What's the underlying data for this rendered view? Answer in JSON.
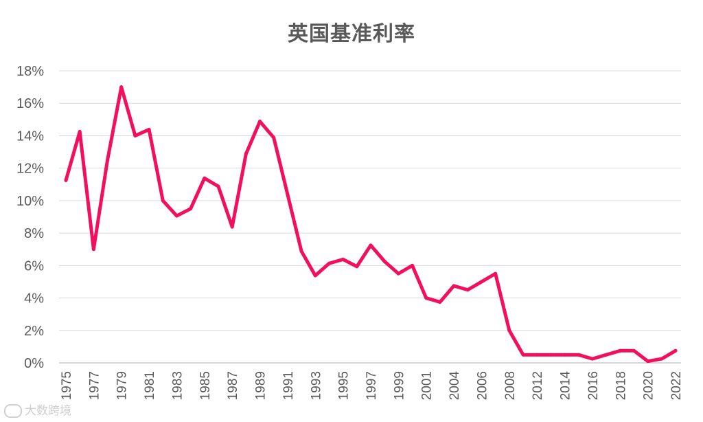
{
  "chart_data": {
    "type": "line",
    "title": "英国基准利率",
    "xlabel": "",
    "ylabel": "",
    "ylim": [
      0,
      18
    ],
    "yticks": [
      "0%",
      "2%",
      "4%",
      "6%",
      "8%",
      "10%",
      "12%",
      "14%",
      "16%",
      "18%"
    ],
    "grid": true,
    "legend": "none",
    "categories": [
      "1975",
      "1976",
      "1977",
      "1978",
      "1979",
      "1980",
      "1981",
      "1982",
      "1983",
      "1984",
      "1985",
      "1986",
      "1987",
      "1988",
      "1989",
      "1990",
      "1991",
      "1992",
      "1993",
      "1994",
      "1995",
      "1996",
      "1997",
      "1998",
      "1999",
      "2000",
      "2001",
      "2002",
      "2004",
      "2005",
      "2006",
      "2007",
      "2008",
      "2009",
      "2012",
      "2013",
      "2014",
      "2015",
      "2016",
      "2017",
      "2018",
      "2019",
      "2020",
      "2021",
      "2022"
    ],
    "xtick_labels": [
      "1975",
      "1977",
      "1979",
      "1981",
      "1983",
      "1985",
      "1987",
      "1989",
      "1991",
      "1993",
      "1995",
      "1997",
      "1999",
      "2001",
      "2004",
      "2006",
      "2008",
      "2012",
      "2014",
      "2016",
      "2018",
      "2020",
      "2022"
    ],
    "series": [
      {
        "values": [
          11.25,
          14.25,
          7.0,
          12.5,
          17.0,
          14.0,
          14.38,
          10.0,
          9.06,
          9.5,
          11.38,
          10.88,
          8.38,
          12.88,
          14.88,
          13.88,
          10.38,
          6.88,
          5.38,
          6.13,
          6.38,
          5.94,
          7.25,
          6.25,
          5.5,
          6.0,
          4.0,
          3.75,
          4.75,
          4.5,
          5.0,
          5.5,
          2.0,
          0.5,
          0.5,
          0.5,
          0.5,
          0.5,
          0.25,
          0.5,
          0.75,
          0.75,
          0.1,
          0.25,
          0.75
        ],
        "color": "#f2105e"
      }
    ]
  },
  "watermark": {
    "text": "大数跨境"
  }
}
